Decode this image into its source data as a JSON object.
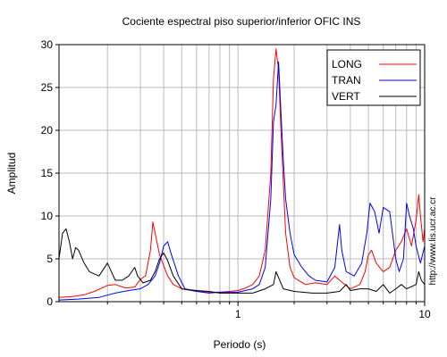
{
  "chart_data": {
    "type": "line",
    "title": "Cociente espectral piso superior/inferior  OFIC INS",
    "xlabel": "Periodo (s)",
    "ylabel": "Amplitud",
    "x_scale": "log",
    "xlim": [
      0.11,
      10
    ],
    "ylim": [
      0,
      30
    ],
    "y_ticks": [
      0,
      5,
      10,
      15,
      20,
      25,
      30
    ],
    "x_tick_labels": [
      {
        "value": 1,
        "label": "1"
      },
      {
        "value": 10,
        "label": "10"
      }
    ],
    "grid": true,
    "legend_position": "top-right",
    "side_note": "http://www.lis.ucr.ac.cr",
    "series": [
      {
        "name": "LONG",
        "color": "#ff0000",
        "points": [
          [
            0.11,
            0.5
          ],
          [
            0.13,
            0.6
          ],
          [
            0.15,
            0.8
          ],
          [
            0.17,
            1.2
          ],
          [
            0.2,
            1.9
          ],
          [
            0.22,
            2.0
          ],
          [
            0.25,
            1.6
          ],
          [
            0.28,
            1.7
          ],
          [
            0.3,
            2.6
          ],
          [
            0.32,
            3.0
          ],
          [
            0.34,
            6.0
          ],
          [
            0.35,
            9.3
          ],
          [
            0.36,
            8.0
          ],
          [
            0.38,
            5.5
          ],
          [
            0.42,
            3.0
          ],
          [
            0.45,
            2.0
          ],
          [
            0.5,
            1.5
          ],
          [
            0.6,
            1.2
          ],
          [
            0.7,
            1.1
          ],
          [
            0.8,
            1.1
          ],
          [
            0.9,
            1.2
          ],
          [
            1.0,
            1.3
          ],
          [
            1.1,
            1.6
          ],
          [
            1.2,
            2.0
          ],
          [
            1.3,
            3.0
          ],
          [
            1.4,
            6.0
          ],
          [
            1.5,
            15.0
          ],
          [
            1.55,
            26.0
          ],
          [
            1.6,
            29.5
          ],
          [
            1.65,
            27.0
          ],
          [
            1.7,
            20.0
          ],
          [
            1.8,
            8.0
          ],
          [
            1.9,
            4.0
          ],
          [
            2.0,
            2.8
          ],
          [
            2.3,
            2.0
          ],
          [
            2.6,
            2.2
          ],
          [
            3.0,
            2.0
          ],
          [
            3.3,
            3.0
          ],
          [
            3.5,
            2.5
          ],
          [
            4.0,
            1.5
          ],
          [
            4.5,
            2.0
          ],
          [
            4.8,
            3.5
          ],
          [
            5.0,
            5.5
          ],
          [
            5.2,
            6.0
          ],
          [
            5.5,
            4.5
          ],
          [
            6.0,
            3.5
          ],
          [
            6.5,
            4.0
          ],
          [
            7.0,
            6.0
          ],
          [
            7.5,
            7.0
          ],
          [
            8.0,
            8.5
          ],
          [
            8.5,
            6.5
          ],
          [
            9.0,
            9.5
          ],
          [
            9.3,
            12.5
          ],
          [
            9.5,
            10.0
          ],
          [
            9.8,
            7.0
          ],
          [
            10.0,
            8.5
          ]
        ]
      },
      {
        "name": "TRAN",
        "color": "#0000ff",
        "points": [
          [
            0.11,
            0.2
          ],
          [
            0.14,
            0.3
          ],
          [
            0.18,
            0.5
          ],
          [
            0.22,
            1.0
          ],
          [
            0.26,
            1.3
          ],
          [
            0.3,
            1.5
          ],
          [
            0.33,
            2.0
          ],
          [
            0.36,
            3.0
          ],
          [
            0.38,
            4.5
          ],
          [
            0.4,
            6.5
          ],
          [
            0.42,
            7.0
          ],
          [
            0.44,
            5.5
          ],
          [
            0.48,
            3.0
          ],
          [
            0.52,
            1.5
          ],
          [
            0.6,
            1.2
          ],
          [
            0.7,
            1.0
          ],
          [
            0.8,
            1.1
          ],
          [
            0.9,
            1.1
          ],
          [
            1.0,
            1.1
          ],
          [
            1.2,
            1.5
          ],
          [
            1.3,
            2.0
          ],
          [
            1.4,
            4.0
          ],
          [
            1.5,
            12.0
          ],
          [
            1.55,
            21.0
          ],
          [
            1.6,
            23.0
          ],
          [
            1.65,
            28.0
          ],
          [
            1.7,
            22.0
          ],
          [
            1.75,
            16.5
          ],
          [
            1.8,
            12.0
          ],
          [
            1.9,
            8.0
          ],
          [
            2.0,
            5.5
          ],
          [
            2.2,
            4.0
          ],
          [
            2.4,
            3.0
          ],
          [
            2.6,
            2.5
          ],
          [
            3.0,
            2.3
          ],
          [
            3.3,
            4.0
          ],
          [
            3.5,
            9.0
          ],
          [
            3.6,
            6.0
          ],
          [
            3.8,
            3.5
          ],
          [
            4.2,
            3.0
          ],
          [
            4.6,
            4.5
          ],
          [
            4.9,
            8.0
          ],
          [
            5.1,
            11.5
          ],
          [
            5.4,
            10.5
          ],
          [
            5.7,
            8.0
          ],
          [
            6.0,
            11.0
          ],
          [
            6.5,
            10.5
          ],
          [
            7.0,
            5.0
          ],
          [
            7.3,
            3.5
          ],
          [
            7.7,
            5.0
          ],
          [
            8.0,
            11.5
          ],
          [
            8.3,
            10.0
          ],
          [
            8.7,
            8.5
          ],
          [
            9.0,
            6.5
          ],
          [
            9.5,
            4.5
          ],
          [
            10.0,
            6.5
          ]
        ]
      },
      {
        "name": "VERT",
        "color": "#000000",
        "points": [
          [
            0.11,
            5.0
          ],
          [
            0.115,
            8.0
          ],
          [
            0.12,
            8.5
          ],
          [
            0.125,
            7.0
          ],
          [
            0.13,
            5.0
          ],
          [
            0.135,
            6.3
          ],
          [
            0.14,
            6.0
          ],
          [
            0.15,
            4.5
          ],
          [
            0.16,
            3.5
          ],
          [
            0.18,
            3.0
          ],
          [
            0.2,
            4.5
          ],
          [
            0.21,
            3.5
          ],
          [
            0.22,
            2.5
          ],
          [
            0.24,
            2.5
          ],
          [
            0.26,
            3.0
          ],
          [
            0.28,
            4.0
          ],
          [
            0.29,
            3.0
          ],
          [
            0.31,
            2.2
          ],
          [
            0.34,
            2.5
          ],
          [
            0.36,
            3.5
          ],
          [
            0.38,
            5.0
          ],
          [
            0.4,
            5.7
          ],
          [
            0.42,
            4.8
          ],
          [
            0.45,
            3.0
          ],
          [
            0.5,
            1.5
          ],
          [
            0.6,
            1.3
          ],
          [
            0.7,
            1.2
          ],
          [
            0.8,
            1.0
          ],
          [
            0.9,
            1.0
          ],
          [
            1.0,
            1.0
          ],
          [
            1.2,
            1.0
          ],
          [
            1.4,
            1.5
          ],
          [
            1.55,
            2.0
          ],
          [
            1.6,
            3.5
          ],
          [
            1.65,
            2.8
          ],
          [
            1.75,
            1.5
          ],
          [
            2.0,
            1.2
          ],
          [
            2.5,
            1.0
          ],
          [
            3.0,
            1.0
          ],
          [
            3.5,
            1.2
          ],
          [
            3.8,
            2.0
          ],
          [
            4.0,
            1.3
          ],
          [
            4.5,
            1.5
          ],
          [
            5.0,
            1.5
          ],
          [
            5.5,
            1.2
          ],
          [
            6.0,
            2.0
          ],
          [
            6.5,
            1.0
          ],
          [
            7.0,
            1.5
          ],
          [
            7.5,
            2.0
          ],
          [
            8.0,
            1.5
          ],
          [
            9.0,
            2.0
          ],
          [
            9.3,
            3.5
          ],
          [
            9.6,
            2.5
          ],
          [
            10.0,
            2.0
          ]
        ]
      }
    ]
  }
}
